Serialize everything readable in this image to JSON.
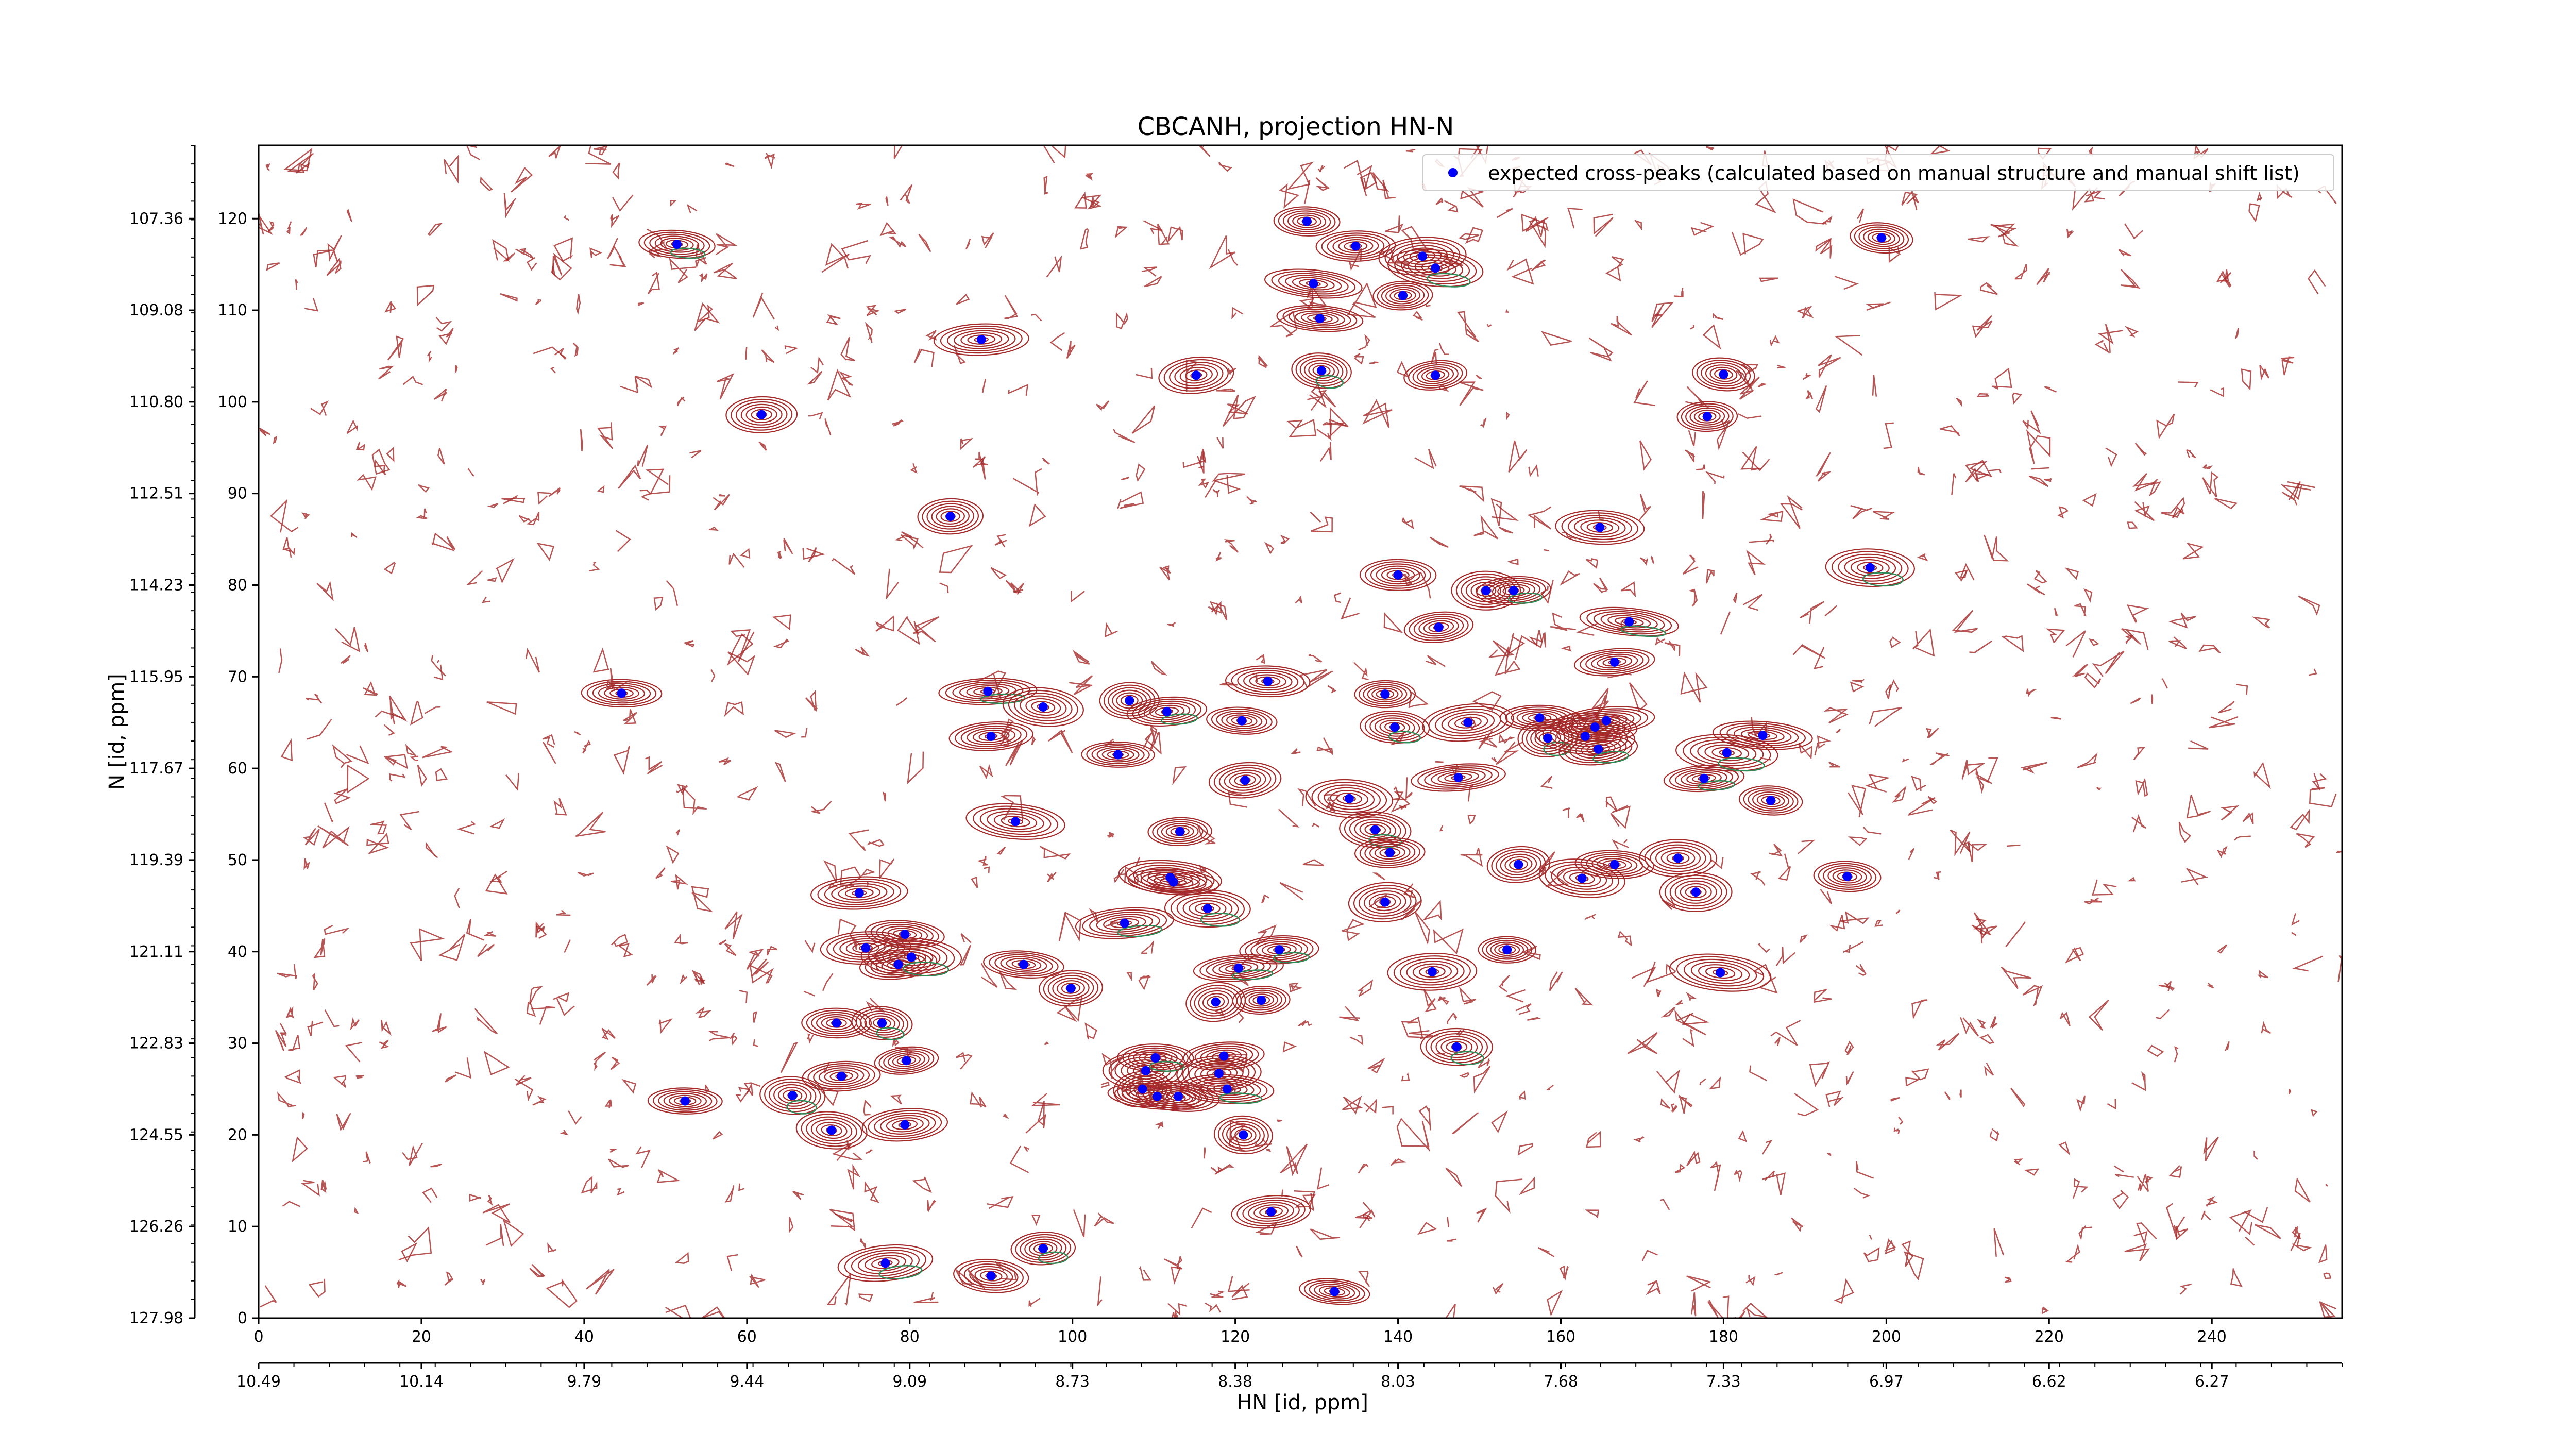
{
  "chart_data": {
    "type": "scatter",
    "title": "CBCANH, projection HN-N",
    "xlabel": "HN [id, ppm]",
    "ylabel": "N [id, ppm]",
    "xlim": [
      0,
      256
    ],
    "ylim": [
      0,
      128
    ],
    "x_ticks": [
      0,
      20,
      40,
      60,
      80,
      100,
      120,
      140,
      160,
      180,
      200,
      220,
      240
    ],
    "y_ticks": [
      0,
      10,
      20,
      30,
      40,
      50,
      60,
      70,
      80,
      90,
      100,
      110,
      120
    ],
    "secondary_x_ticks": [
      "10.49",
      "10.14",
      "9.79",
      "9.44",
      "9.09",
      "8.73",
      "8.38",
      "8.03",
      "7.68",
      "7.33",
      "6.97",
      "6.62",
      "6.27"
    ],
    "secondary_y_ticks": [
      "127.98",
      "126.26",
      "124.55",
      "122.83",
      "121.11",
      "119.39",
      "117.67",
      "115.95",
      "114.23",
      "112.51",
      "110.80",
      "109.08",
      "107.36"
    ],
    "legend": {
      "position": "top-right",
      "label": "expected cross-peaks (calculated based on manual structure and manual shift list)"
    },
    "grid": false,
    "colors": {
      "contour_positive": "#a52a2a",
      "contour_negative": "#2e8b57",
      "peak_marker": "#0000ff"
    },
    "series": [
      {
        "name": "expected cross-peaks (calculated based on manual structure and manual shift list)",
        "points": [
          [
            51.4,
            117.2
          ],
          [
            61.8,
            98.6
          ],
          [
            44.6,
            68.2
          ],
          [
            52.4,
            23.7
          ],
          [
            65.6,
            24.3
          ],
          [
            70.4,
            20.5
          ],
          [
            71.6,
            26.4
          ],
          [
            71.0,
            32.2
          ],
          [
            76.6,
            32.2
          ],
          [
            73.8,
            46.4
          ],
          [
            74.6,
            40.4
          ],
          [
            78.6,
            38.6
          ],
          [
            80.2,
            39.4
          ],
          [
            79.4,
            41.9
          ],
          [
            79.6,
            28.1
          ],
          [
            79.4,
            21.1
          ],
          [
            77.0,
            6.0
          ],
          [
            85.0,
            87.5
          ],
          [
            88.8,
            106.8
          ],
          [
            90.0,
            4.6
          ],
          [
            89.6,
            68.4
          ],
          [
            90.0,
            63.5
          ],
          [
            93.0,
            54.2
          ],
          [
            94.0,
            38.6
          ],
          [
            96.4,
            7.6
          ],
          [
            96.4,
            66.7
          ],
          [
            99.8,
            36.0
          ],
          [
            105.6,
            61.5
          ],
          [
            106.4,
            43.1
          ],
          [
            107.0,
            67.4
          ],
          [
            109.0,
            27.0
          ],
          [
            108.6,
            25.0
          ],
          [
            110.2,
            28.4
          ],
          [
            110.4,
            24.2
          ],
          [
            112.0,
            48.1
          ],
          [
            112.4,
            47.6
          ],
          [
            111.6,
            66.2
          ],
          [
            113.0,
            24.2
          ],
          [
            113.2,
            53.1
          ],
          [
            115.2,
            102.9
          ],
          [
            116.6,
            44.7
          ],
          [
            118.0,
            26.7
          ],
          [
            117.6,
            34.5
          ],
          [
            118.6,
            28.6
          ],
          [
            119.0,
            25.0
          ],
          [
            120.8,
            65.2
          ],
          [
            121.2,
            58.7
          ],
          [
            121.0,
            20.0
          ],
          [
            120.4,
            38.2
          ],
          [
            123.2,
            34.7
          ],
          [
            124.0,
            69.5
          ],
          [
            124.4,
            11.6
          ],
          [
            125.4,
            40.2
          ],
          [
            128.8,
            119.7
          ],
          [
            129.6,
            112.9
          ],
          [
            130.4,
            109.1
          ],
          [
            130.6,
            103.4
          ],
          [
            132.2,
            2.9
          ],
          [
            134.8,
            117.0
          ],
          [
            134.0,
            56.7
          ],
          [
            137.2,
            53.3
          ],
          [
            138.4,
            45.4
          ],
          [
            138.4,
            68.1
          ],
          [
            139.0,
            50.8
          ],
          [
            139.6,
            64.5
          ],
          [
            140.0,
            81.1
          ],
          [
            140.6,
            111.6
          ],
          [
            143.0,
            115.9
          ],
          [
            144.6,
            114.6
          ],
          [
            144.6,
            102.9
          ],
          [
            145.0,
            75.4
          ],
          [
            144.2,
            37.8
          ],
          [
            147.2,
            29.6
          ],
          [
            147.4,
            59.0
          ],
          [
            148.6,
            65.0
          ],
          [
            150.8,
            79.4
          ],
          [
            154.2,
            79.4
          ],
          [
            153.4,
            40.2
          ],
          [
            154.8,
            49.5
          ],
          [
            157.4,
            65.5
          ],
          [
            158.4,
            63.3
          ],
          [
            162.6,
            48.0
          ],
          [
            164.2,
            64.5
          ],
          [
            163.0,
            63.5
          ],
          [
            164.6,
            62.1
          ],
          [
            164.8,
            86.3
          ],
          [
            165.6,
            65.2
          ],
          [
            166.6,
            49.5
          ],
          [
            168.4,
            76.0
          ],
          [
            166.6,
            71.6
          ],
          [
            174.4,
            50.2
          ],
          [
            176.6,
            46.5
          ],
          [
            177.6,
            58.9
          ],
          [
            179.6,
            37.7
          ],
          [
            178.0,
            98.4
          ],
          [
            180.0,
            103.0
          ],
          [
            180.4,
            61.7
          ],
          [
            184.8,
            63.6
          ],
          [
            185.8,
            56.5
          ],
          [
            195.2,
            48.2
          ],
          [
            198.0,
            81.9
          ],
          [
            199.4,
            117.9
          ]
        ]
      }
    ]
  }
}
